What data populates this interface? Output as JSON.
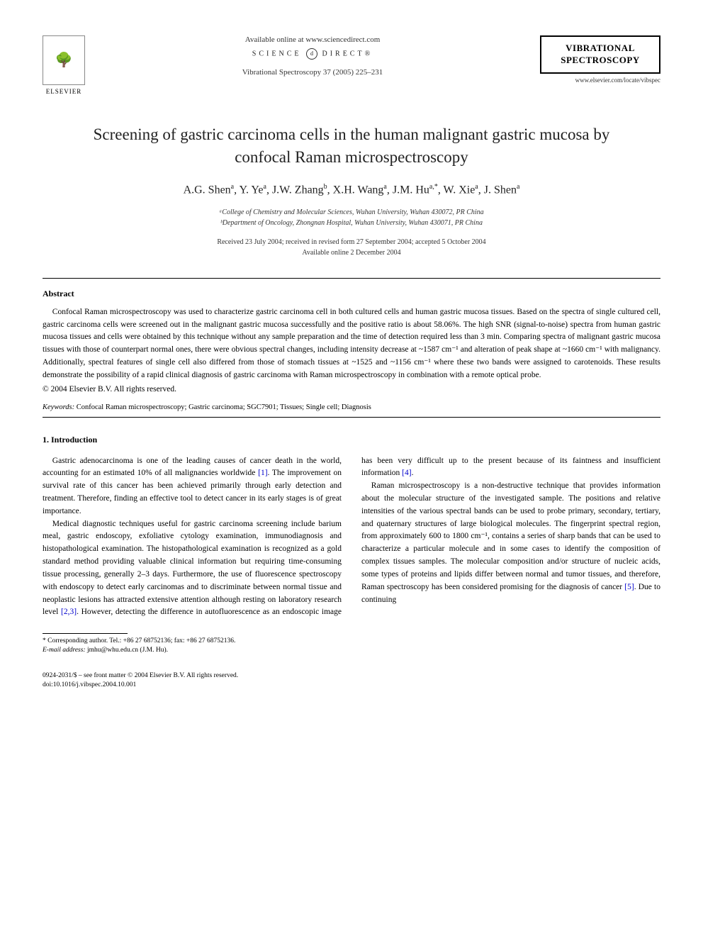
{
  "header": {
    "publisher_name": "ELSEVIER",
    "available_text": "Available online at www.sciencedirect.com",
    "science_direct_left": "SCIENCE",
    "science_direct_symbol": "d",
    "science_direct_right": "DIRECT",
    "journal_ref": "Vibrational Spectroscopy 37 (2005) 225–231",
    "journal_name_line1": "VIBRATIONAL",
    "journal_name_line2": "SPECTROSCOPY",
    "journal_url": "www.elsevier.com/locate/vibspec"
  },
  "article": {
    "title": "Screening of gastric carcinoma cells in the human malignant gastric mucosa by confocal Raman microspectroscopy",
    "authors_html": "A.G. Shen<sup>a</sup>, Y. Ye<sup>a</sup>, J.W. Zhang<sup>b</sup>, X.H. Wang<sup>a</sup>, J.M. Hu<sup>a,*</sup>, W. Xie<sup>a</sup>, J. Shen<sup>a</sup>",
    "affiliations": [
      "ᵃCollege of Chemistry and Molecular Sciences, Wuhan University, Wuhan 430072, PR China",
      "ᵇDepartment of Oncology, Zhongnan Hospital, Wuhan University, Wuhan 430071, PR China"
    ],
    "dates_line1": "Received 23 July 2004; received in revised form 27 September 2004; accepted 5 October 2004",
    "dates_line2": "Available online 2 December 2004"
  },
  "abstract": {
    "heading": "Abstract",
    "text": "Confocal Raman microspectroscopy was used to characterize gastric carcinoma cell in both cultured cells and human gastric mucosa tissues. Based on the spectra of single cultured cell, gastric carcinoma cells were screened out in the malignant gastric mucosa successfully and the positive ratio is about 58.06%. The high SNR (signal-to-noise) spectra from human gastric mucosa tissues and cells were obtained by this technique without any sample preparation and the time of detection required less than 3 min. Comparing spectra of malignant gastric mucosa tissues with those of counterpart normal ones, there were obvious spectral changes, including intensity decrease at ~1587 cm⁻¹ and alteration of peak shape at ~1660 cm⁻¹ with malignancy. Additionally, spectral features of single cell also differed from those of stomach tissues at ~1525 and ~1156 cm⁻¹ where these two bands were assigned to carotenoids. These results demonstrate the possibility of a rapid clinical diagnosis of gastric carcinoma with Raman microspectroscopy in combination with a remote optical probe.",
    "copyright": "© 2004 Elsevier B.V. All rights reserved."
  },
  "keywords": {
    "label": "Keywords:",
    "text": " Confocal Raman microspectroscopy; Gastric carcinoma; SGC7901; Tissues; Single cell; Diagnosis"
  },
  "intro": {
    "heading": "1. Introduction",
    "para1": "Gastric adenocarcinoma is one of the leading causes of cancer death in the world, accounting for an estimated 10% of all malignancies worldwide ",
    "para1_ref": "[1]",
    "para1_cont": ". The improvement on survival rate of this cancer has been achieved primarily through early detection and treatment. Therefore, finding an effective tool to detect cancer in its early stages is of great importance.",
    "para2": "Medical diagnostic techniques useful for gastric carcinoma screening include barium meal, gastric endoscopy, exfoliative cytology examination, immunodiagnosis and histopathological examination. The histopathological examination is recognized as a gold standard method providing valuable clinical information but requiring time-consuming tissue processing, generally 2–3 days. Furthermore, the use of fluorescence spectroscopy with endoscopy to detect early carcinomas and to discriminate between normal tissue and neoplastic lesions has attracted extensive attention although resting on laboratory research level ",
    "para2_ref": "[2,3]",
    "para2_cont": ". However, detecting the difference in autofluorescence as an endoscopic image has been very difficult up to the present because of its faintness and insufficient information ",
    "para2_ref2": "[4]",
    "para2_end": ".",
    "para3": "Raman microspectroscopy is a non-destructive technique that provides information about the molecular structure of the investigated sample. The positions and relative intensities of the various spectral bands can be used to probe primary, secondary, tertiary, and quaternary structures of large biological molecules. The fingerprint spectral region, from approximately 600 to 1800 cm⁻¹, contains a series of sharp bands that can be used to characterize a particular molecule and in some cases to identify the composition of complex tissues samples. The molecular composition and/or structure of nucleic acids, some types of proteins and lipids differ between normal and tumor tissues, and therefore, Raman spectroscopy has been considered promising for the diagnosis of cancer ",
    "para3_ref": "[5]",
    "para3_cont": ". Due to continuing"
  },
  "footnote": {
    "corr": "* Corresponding author. Tel.: +86 27 68752136; fax: +86 27 68752136.",
    "email_label": "E-mail address:",
    "email": " jmhu@whu.edu.cn (J.M. Hu)."
  },
  "footer": {
    "line1": "0924-2031/$ – see front matter © 2004 Elsevier B.V. All rights reserved.",
    "line2": "doi:10.1016/j.vibspec.2004.10.001"
  },
  "colors": {
    "text": "#000000",
    "link": "#0000cc",
    "background": "#ffffff"
  }
}
